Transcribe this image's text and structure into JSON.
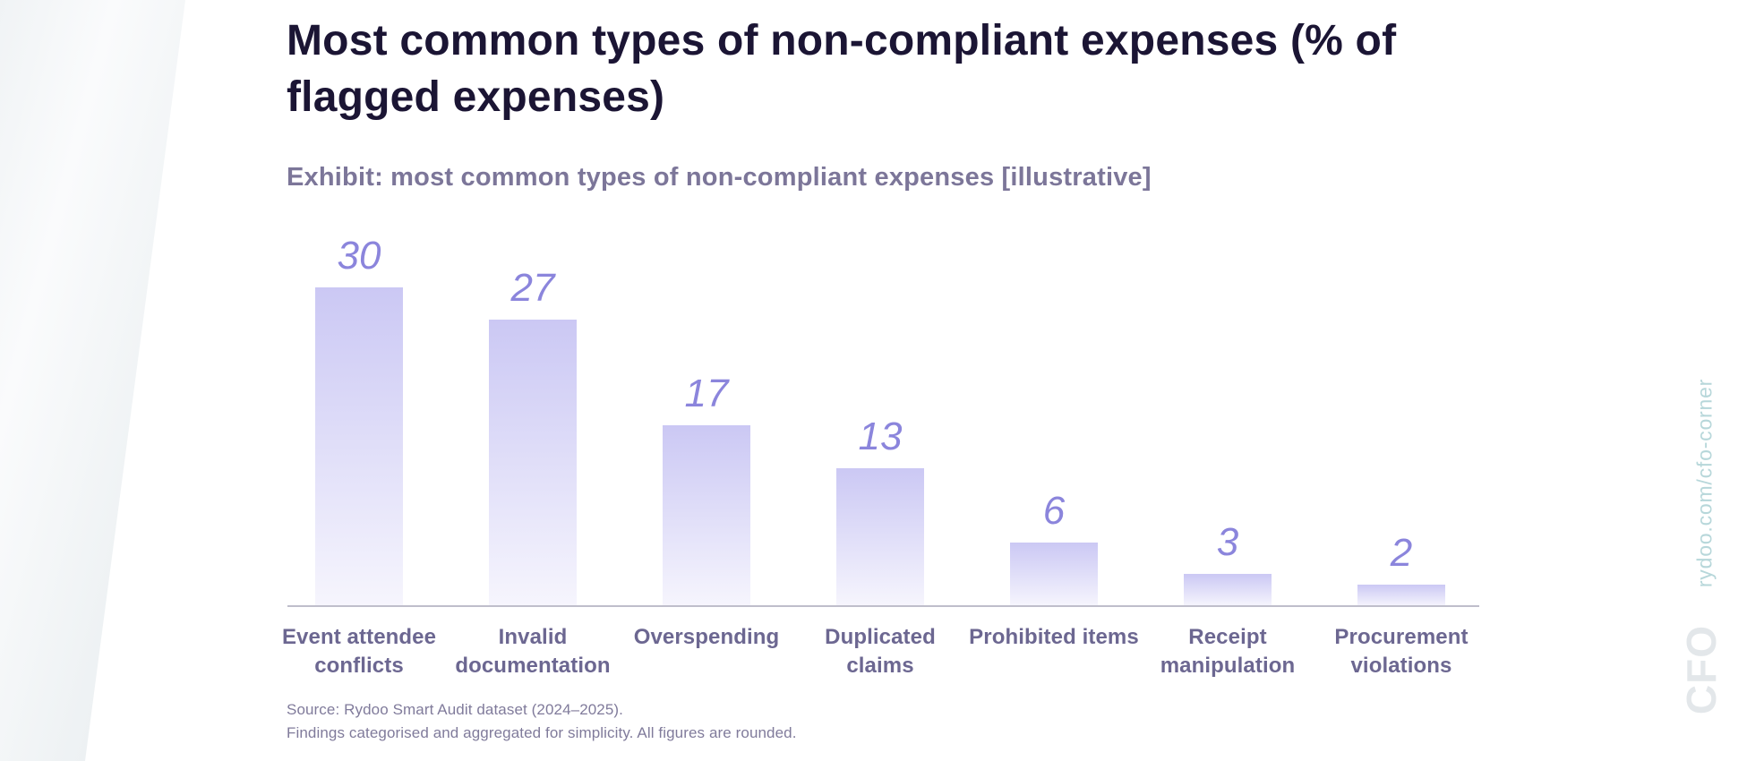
{
  "page": {
    "title_line1": "Most common types of non-compliant expenses (% of",
    "title_line2": "flagged expenses)",
    "subtitle": "Exhibit: most common types of non-compliant expenses [illustrative]",
    "source_line1": "Source: Rydoo Smart Audit dataset (2024–2025).",
    "source_line2": "Findings categorised and aggregated for simplicity. All figures are rounded.",
    "watermark_url": "rydoo.com/cfo-corner",
    "watermark_logo": "CFO"
  },
  "colors": {
    "title": "#1b1534",
    "subtitle": "#7c7699",
    "value_label": "#8b85dc",
    "category_label": "#6c6791",
    "bar_top": "#cbc8f4",
    "bar_bottom": "#f6f5fd",
    "axis_line": "#bfbecb",
    "source_text": "#807b9b",
    "watermark_url": "#b7d7da",
    "watermark_logo": "#e3e7ea"
  },
  "chart_data": {
    "type": "bar",
    "title": "Most common types of non-compliant expenses (% of flagged expenses)",
    "subtitle": "Exhibit: most common types of non-compliant expenses [illustrative]",
    "categories": [
      "Event attendee conflicts",
      "Invalid documentation",
      "Overspending",
      "Duplicated claims",
      "Prohibited items",
      "Receipt manipulation",
      "Procurement violations"
    ],
    "values": [
      30,
      27,
      17,
      13,
      6,
      3,
      2
    ],
    "unit": "% of flagged expenses",
    "xlabel": "",
    "ylabel": "",
    "ylim": [
      0,
      30
    ],
    "grid": false,
    "legend": false,
    "data_labels": "italic values above each bar",
    "bar_style": "vertical gradient, periwinkle fading to white",
    "source": "Source: Rydoo Smart Audit dataset (2024–2025). Findings categorised and aggregated for simplicity. All figures are rounded."
  }
}
